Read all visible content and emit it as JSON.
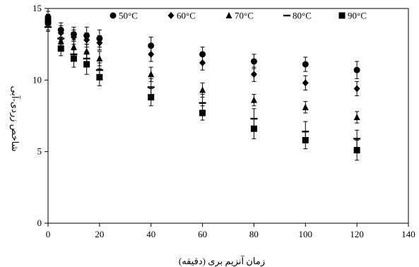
{
  "chart_data": {
    "type": "scatter",
    "title": "",
    "xlabel": "زمان آنزیم بری (دقیقه)",
    "ylabel": "شاخص زردی-آبی",
    "xlim": [
      0,
      140
    ],
    "ylim": [
      0,
      15
    ],
    "x_ticks": [
      0,
      20,
      40,
      60,
      80,
      100,
      120,
      140
    ],
    "y_ticks": [
      0,
      5,
      10,
      15
    ],
    "grid": false,
    "legend_position": "top",
    "x": [
      0,
      5,
      10,
      15,
      20,
      40,
      60,
      80,
      100,
      120
    ],
    "series": [
      {
        "name": "50°C",
        "marker": "circle",
        "color": "#000000",
        "values": [
          14.4,
          13.5,
          13.2,
          13.1,
          12.9,
          12.4,
          11.8,
          11.3,
          11.1,
          10.7
        ],
        "errors": [
          0.4,
          0.5,
          0.5,
          0.6,
          0.6,
          0.6,
          0.5,
          0.5,
          0.5,
          0.6
        ]
      },
      {
        "name": "60°C",
        "marker": "diamond",
        "color": "#000000",
        "values": [
          14.2,
          13.3,
          13.0,
          12.8,
          12.6,
          11.8,
          11.2,
          10.4,
          9.8,
          9.4
        ],
        "errors": [
          0.4,
          0.5,
          0.5,
          0.5,
          0.5,
          0.5,
          0.5,
          0.5,
          0.5,
          0.5
        ]
      },
      {
        "name": "70°C",
        "marker": "triangle",
        "color": "#000000",
        "values": [
          14.0,
          12.7,
          12.3,
          12.0,
          11.5,
          10.4,
          9.3,
          8.6,
          8.1,
          7.4
        ],
        "errors": [
          0.5,
          0.5,
          0.5,
          0.5,
          0.5,
          0.5,
          0.5,
          0.4,
          0.4,
          0.4
        ]
      },
      {
        "name": "80°C",
        "marker": "dash",
        "color": "#000000",
        "values": [
          13.7,
          12.9,
          11.8,
          11.5,
          10.7,
          9.5,
          8.4,
          7.3,
          6.4,
          5.9
        ],
        "errors": [
          0.3,
          0.4,
          0.4,
          0.5,
          0.5,
          0.6,
          0.6,
          0.7,
          0.7,
          0.6
        ]
      },
      {
        "name": "90°C",
        "marker": "square",
        "color": "#000000",
        "values": [
          14.1,
          12.2,
          11.5,
          11.1,
          10.2,
          8.8,
          7.7,
          6.6,
          5.8,
          5.1
        ],
        "errors": [
          0.4,
          0.5,
          0.6,
          0.7,
          0.6,
          0.6,
          0.5,
          0.7,
          0.6,
          0.7
        ]
      }
    ]
  }
}
